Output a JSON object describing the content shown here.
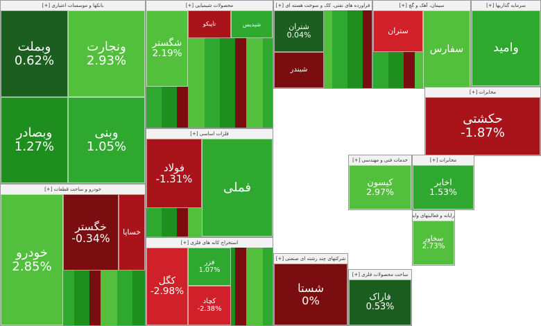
{
  "chart_data": {
    "type": "heatmap",
    "colors": {
      "up_strong": "#1e8f1e",
      "up_mid": "#2fa82f",
      "up_light": "#52c03c",
      "down_strong": "#7a0d10",
      "down_mid": "#a8141a",
      "down_light": "#d0202a",
      "neutral": "#1b5e20"
    },
    "sectors": [
      {
        "name": "بانکها و موسسات اعتباری [+]",
        "tiles": [
          {
            "name": "وبملت",
            "change": "0.62%",
            "tone": "neutral"
          },
          {
            "name": "وبصادر",
            "change": "1.27%",
            "tone": "up_strong"
          },
          {
            "name": "ونجارت",
            "change": "2.93%",
            "tone": "up_light"
          },
          {
            "name": "وبنی",
            "change": "1.05%",
            "tone": "up_mid"
          }
        ]
      },
      {
        "name": "محصولات شیمیایی [+]",
        "tiles": [
          {
            "name": "شگستر",
            "change": "2.19%",
            "tone": "up_light"
          },
          {
            "name": "تاپیکو",
            "change": "",
            "tone": "down_mid"
          },
          {
            "name": "شپدیس",
            "change": "",
            "tone": "up_mid"
          }
        ]
      },
      {
        "name": "فراورده های نفتی، کک و سوخت هسته ای [+]",
        "tiles": [
          {
            "name": "شتران",
            "change": "0.04%",
            "tone": "neutral"
          },
          {
            "name": "شبندر",
            "change": "",
            "tone": "down_strong"
          }
        ]
      },
      {
        "name": "سیمان، آهک و گچ [+]",
        "tiles": [
          {
            "name": "ستران",
            "change": "",
            "tone": "down_light"
          },
          {
            "name": "سفارس",
            "change": "",
            "tone": "up_light"
          }
        ]
      },
      {
        "name": "سرمایه گذاریها [+]",
        "tiles": [
          {
            "name": "وامید",
            "change": "",
            "tone": "up_mid"
          }
        ]
      },
      {
        "name": "مخابرات [+]",
        "tiles": [
          {
            "name": "حکشتی",
            "change": "-1.87%",
            "tone": "down_mid"
          }
        ]
      },
      {
        "name": "خودرو و ساخت قطعات [+]",
        "tiles": [
          {
            "name": "خودرو",
            "change": "2.85%",
            "tone": "up_light"
          },
          {
            "name": "خگستر",
            "change": "-0.34%",
            "tone": "down_strong"
          },
          {
            "name": "خساپا",
            "change": "",
            "tone": "down_mid"
          }
        ]
      },
      {
        "name": "فلزات اساسی [+]",
        "tiles": [
          {
            "name": "فولاد",
            "change": "-1.31%",
            "tone": "down_mid"
          },
          {
            "name": "فملی",
            "change": "",
            "tone": "up_mid"
          }
        ]
      },
      {
        "name": "استخراج کانه های فلزی [+]",
        "tiles": [
          {
            "name": "کگل",
            "change": "-2.98%",
            "tone": "down_light"
          },
          {
            "name": "فزر",
            "change": "1.07%",
            "tone": "up_mid"
          },
          {
            "name": "کچاد",
            "change": "-2.38%",
            "tone": "down_light"
          }
        ]
      },
      {
        "name": "خدمات فنی و مهندسی [+]",
        "tiles": [
          {
            "name": "کیسون",
            "change": "2.97%",
            "tone": "up_light"
          }
        ]
      },
      {
        "name": "مخابرات [+]",
        "tiles": [
          {
            "name": "اخابر",
            "change": "1.53%",
            "tone": "up_mid"
          }
        ]
      },
      {
        "name": "شرکتهای چند رشته ای صنعتی [+]",
        "tiles": [
          {
            "name": "شستا",
            "change": "0%",
            "tone": "down_strong"
          }
        ]
      },
      {
        "name": "ساخت محصولات فلزی [+]",
        "tiles": [
          {
            "name": "فاراک",
            "change": "0.53%",
            "tone": "neutral"
          }
        ]
      },
      {
        "name": "رایانه و فعالیتهای وابسته [+]",
        "tiles": [
          {
            "name": "سخاور",
            "change": "2.73%",
            "tone": "up_light"
          }
        ]
      }
    ]
  }
}
